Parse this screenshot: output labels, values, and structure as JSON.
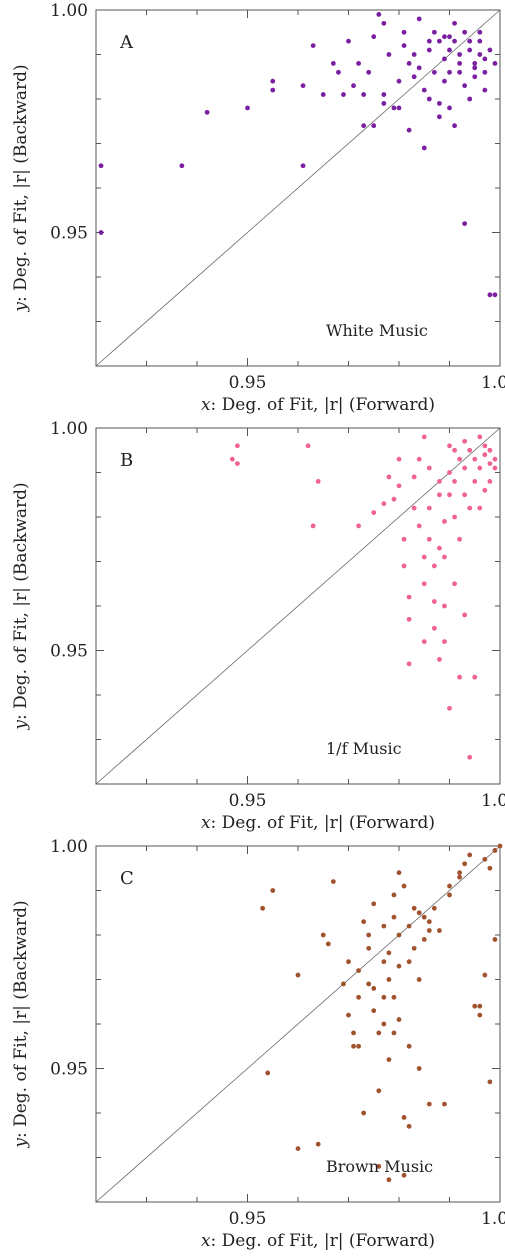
{
  "chart_data": [
    {
      "type": "scatter",
      "panel_label": "A",
      "annotation": "White Music",
      "color": "#7b1fa2",
      "xlabel_var": "x",
      "xlabel": ": Deg. of Fit, |r| (Forward)",
      "ylabel_var": "y",
      "ylabel": ": Deg. of Fit, |r| (Backward)",
      "xlim": [
        0.92,
        1.0
      ],
      "ylim": [
        0.92,
        1.0
      ],
      "x_ticks": [
        0.95,
        1.0
      ],
      "x_tick_labels": [
        "0.95",
        "1.00"
      ],
      "y_ticks": [
        0.95,
        1.0
      ],
      "y_tick_labels": [
        "0.95",
        "1.00"
      ],
      "grid": false,
      "points": [
        [
          0.921,
          0.965
        ],
        [
          0.921,
          0.95
        ],
        [
          0.937,
          0.965
        ],
        [
          0.942,
          0.977
        ],
        [
          0.95,
          0.978
        ],
        [
          0.955,
          0.982
        ],
        [
          0.955,
          0.984
        ],
        [
          0.961,
          0.965
        ],
        [
          0.961,
          0.983
        ],
        [
          0.963,
          0.992
        ],
        [
          0.965,
          0.981
        ],
        [
          0.967,
          0.988
        ],
        [
          0.968,
          0.986
        ],
        [
          0.969,
          0.981
        ],
        [
          0.97,
          0.993
        ],
        [
          0.971,
          0.983
        ],
        [
          0.972,
          0.988
        ],
        [
          0.973,
          0.981
        ],
        [
          0.973,
          0.974
        ],
        [
          0.974,
          0.986
        ],
        [
          0.975,
          0.974
        ],
        [
          0.975,
          0.994
        ],
        [
          0.976,
          0.999
        ],
        [
          0.977,
          0.997
        ],
        [
          0.977,
          0.981
        ],
        [
          0.977,
          0.979
        ],
        [
          0.978,
          0.99
        ],
        [
          0.979,
          0.978
        ],
        [
          0.98,
          0.978
        ],
        [
          0.981,
          0.995
        ],
        [
          0.982,
          0.988
        ],
        [
          0.982,
          0.973
        ],
        [
          0.983,
          0.99
        ],
        [
          0.984,
          0.987
        ],
        [
          0.985,
          0.982
        ],
        [
          0.985,
          0.969
        ],
        [
          0.986,
          0.991
        ],
        [
          0.986,
          0.98
        ],
        [
          0.987,
          0.986
        ],
        [
          0.987,
          0.995
        ],
        [
          0.988,
          0.993
        ],
        [
          0.988,
          0.976
        ],
        [
          0.989,
          0.989
        ],
        [
          0.989,
          0.984
        ],
        [
          0.99,
          0.991
        ],
        [
          0.99,
          0.986
        ],
        [
          0.99,
          0.978
        ],
        [
          0.991,
          0.993
        ],
        [
          0.991,
          0.997
        ],
        [
          0.991,
          0.974
        ],
        [
          0.992,
          0.988
        ],
        [
          0.992,
          0.99
        ],
        [
          0.993,
          0.983
        ],
        [
          0.993,
          0.995
        ],
        [
          0.993,
          0.952
        ],
        [
          0.994,
          0.991
        ],
        [
          0.994,
          0.993
        ],
        [
          0.995,
          0.988
        ],
        [
          0.995,
          0.985
        ],
        [
          0.996,
          0.993
        ],
        [
          0.996,
          0.99
        ],
        [
          0.997,
          0.986
        ],
        [
          0.997,
          0.989
        ],
        [
          0.998,
          0.936
        ],
        [
          0.999,
          0.936
        ],
        [
          0.998,
          0.991
        ],
        [
          0.999,
          0.988
        ],
        [
          0.984,
          0.998
        ],
        [
          0.986,
          0.993
        ],
        [
          0.98,
          0.984
        ],
        [
          0.981,
          0.992
        ],
        [
          0.983,
          0.985
        ],
        [
          0.988,
          0.979
        ],
        [
          0.989,
          0.994
        ],
        [
          0.992,
          0.986
        ],
        [
          0.994,
          0.98
        ],
        [
          0.995,
          0.987
        ],
        [
          0.996,
          0.995
        ],
        [
          0.997,
          0.982
        ],
        [
          0.99,
          0.994
        ]
      ]
    },
    {
      "type": "scatter",
      "panel_label": "B",
      "annotation": "1/f Music",
      "color": "#f06292",
      "xlabel_var": "x",
      "xlabel": ": Deg. of Fit, |r| (Forward)",
      "ylabel_var": "y",
      "ylabel": ": Deg. of Fit, |r| (Backward)",
      "xlim": [
        0.92,
        1.0
      ],
      "ylim": [
        0.92,
        1.0
      ],
      "x_ticks": [
        0.95,
        1.0
      ],
      "x_tick_labels": [
        "0.95",
        "1.00"
      ],
      "y_ticks": [
        0.95,
        1.0
      ],
      "y_tick_labels": [
        "0.95",
        "1.00"
      ],
      "grid": false,
      "points": [
        [
          0.947,
          0.993
        ],
        [
          0.948,
          0.992
        ],
        [
          0.948,
          0.996
        ],
        [
          0.962,
          0.996
        ],
        [
          0.963,
          0.978
        ],
        [
          0.964,
          0.988
        ],
        [
          0.972,
          0.978
        ],
        [
          0.975,
          0.981
        ],
        [
          0.977,
          0.983
        ],
        [
          0.978,
          0.989
        ],
        [
          0.979,
          0.984
        ],
        [
          0.98,
          0.993
        ],
        [
          0.98,
          0.987
        ],
        [
          0.981,
          0.975
        ],
        [
          0.981,
          0.969
        ],
        [
          0.982,
          0.962
        ],
        [
          0.982,
          0.957
        ],
        [
          0.982,
          0.947
        ],
        [
          0.983,
          0.989
        ],
        [
          0.983,
          0.982
        ],
        [
          0.984,
          0.993
        ],
        [
          0.984,
          0.978
        ],
        [
          0.985,
          0.998
        ],
        [
          0.985,
          0.971
        ],
        [
          0.985,
          0.952
        ],
        [
          0.985,
          0.965
        ],
        [
          0.986,
          0.991
        ],
        [
          0.986,
          0.982
        ],
        [
          0.986,
          0.975
        ],
        [
          0.987,
          0.969
        ],
        [
          0.987,
          0.961
        ],
        [
          0.987,
          0.955
        ],
        [
          0.988,
          0.985
        ],
        [
          0.988,
          0.988
        ],
        [
          0.988,
          0.973
        ],
        [
          0.988,
          0.948
        ],
        [
          0.989,
          0.979
        ],
        [
          0.989,
          0.971
        ],
        [
          0.989,
          0.952
        ],
        [
          0.99,
          0.985
        ],
        [
          0.99,
          0.996
        ],
        [
          0.99,
          0.937
        ],
        [
          0.991,
          0.988
        ],
        [
          0.991,
          0.98
        ],
        [
          0.991,
          0.965
        ],
        [
          0.992,
          0.993
        ],
        [
          0.992,
          0.975
        ],
        [
          0.992,
          0.944
        ],
        [
          0.993,
          0.991
        ],
        [
          0.993,
          0.985
        ],
        [
          0.993,
          0.958
        ],
        [
          0.994,
          0.995
        ],
        [
          0.994,
          0.982
        ],
        [
          0.994,
          0.926
        ],
        [
          0.995,
          0.993
        ],
        [
          0.995,
          0.988
        ],
        [
          0.995,
          0.944
        ],
        [
          0.996,
          0.998
        ],
        [
          0.996,
          0.982
        ],
        [
          0.996,
          0.991
        ],
        [
          0.997,
          0.994
        ],
        [
          0.997,
          0.986
        ],
        [
          0.997,
          0.996
        ],
        [
          0.998,
          0.992
        ],
        [
          0.998,
          0.995
        ],
        [
          0.998,
          0.988
        ],
        [
          0.999,
          0.993
        ],
        [
          0.999,
          0.991
        ],
        [
          0.991,
          0.995
        ],
        [
          0.993,
          0.997
        ],
        [
          0.99,
          0.99
        ],
        [
          0.989,
          0.96
        ]
      ]
    },
    {
      "type": "scatter",
      "panel_label": "C",
      "annotation": "Brown Music",
      "color": "#a0522d",
      "xlabel_var": "x",
      "xlabel": ": Deg. of Fit, |r| (Forward)",
      "ylabel_var": "y",
      "ylabel": ": Deg. of Fit, |r| (Backward)",
      "xlim": [
        0.92,
        1.0
      ],
      "ylim": [
        0.92,
        1.0
      ],
      "x_ticks": [
        0.95,
        1.0
      ],
      "x_tick_labels": [
        "0.95",
        "1.00"
      ],
      "y_ticks": [
        0.95,
        1.0
      ],
      "y_tick_labels": [
        "0.95",
        "1.00"
      ],
      "grid": false,
      "points": [
        [
          0.953,
          0.986
        ],
        [
          0.955,
          0.99
        ],
        [
          0.954,
          0.949
        ],
        [
          0.96,
          0.971
        ],
        [
          0.96,
          0.932
        ],
        [
          0.964,
          0.933
        ],
        [
          0.965,
          0.98
        ],
        [
          0.966,
          0.978
        ],
        [
          0.967,
          0.992
        ],
        [
          0.969,
          0.969
        ],
        [
          0.97,
          0.974
        ],
        [
          0.97,
          0.962
        ],
        [
          0.971,
          0.955
        ],
        [
          0.971,
          0.958
        ],
        [
          0.972,
          0.966
        ],
        [
          0.972,
          0.955
        ],
        [
          0.972,
          0.972
        ],
        [
          0.973,
          0.983
        ],
        [
          0.973,
          0.94
        ],
        [
          0.974,
          0.969
        ],
        [
          0.974,
          0.98
        ],
        [
          0.974,
          0.977
        ],
        [
          0.975,
          0.987
        ],
        [
          0.975,
          0.963
        ],
        [
          0.975,
          0.968
        ],
        [
          0.976,
          0.958
        ],
        [
          0.976,
          0.945
        ],
        [
          0.976,
          0.928
        ],
        [
          0.977,
          0.982
        ],
        [
          0.977,
          0.974
        ],
        [
          0.977,
          0.966
        ],
        [
          0.977,
          0.96
        ],
        [
          0.978,
          0.976
        ],
        [
          0.978,
          0.97
        ],
        [
          0.978,
          0.952
        ],
        [
          0.978,
          0.925
        ],
        [
          0.979,
          0.989
        ],
        [
          0.979,
          0.984
        ],
        [
          0.979,
          0.958
        ],
        [
          0.979,
          0.966
        ],
        [
          0.98,
          0.994
        ],
        [
          0.98,
          0.98
        ],
        [
          0.98,
          0.973
        ],
        [
          0.98,
          0.961
        ],
        [
          0.981,
          0.926
        ],
        [
          0.981,
          0.991
        ],
        [
          0.981,
          0.939
        ],
        [
          0.982,
          0.982
        ],
        [
          0.982,
          0.974
        ],
        [
          0.982,
          0.955
        ],
        [
          0.982,
          0.937
        ],
        [
          0.983,
          0.986
        ],
        [
          0.983,
          0.977
        ],
        [
          0.984,
          0.97
        ],
        [
          0.984,
          0.95
        ],
        [
          0.985,
          0.984
        ],
        [
          0.985,
          0.979
        ],
        [
          0.986,
          0.983
        ],
        [
          0.986,
          0.942
        ],
        [
          0.987,
          0.986
        ],
        [
          0.988,
          0.981
        ],
        [
          0.989,
          0.942
        ],
        [
          0.99,
          0.991
        ],
        [
          0.99,
          0.989
        ],
        [
          0.992,
          0.993
        ],
        [
          0.993,
          0.996
        ],
        [
          0.994,
          0.998
        ],
        [
          0.995,
          0.964
        ],
        [
          0.996,
          0.964
        ],
        [
          0.996,
          0.962
        ],
        [
          0.997,
          0.997
        ],
        [
          0.997,
          0.971
        ],
        [
          0.998,
          0.947
        ],
        [
          0.998,
          0.995
        ],
        [
          0.999,
          0.979
        ],
        [
          0.999,
          0.999
        ],
        [
          1.0,
          1.0
        ],
        [
          0.992,
          0.994
        ],
        [
          0.986,
          0.981
        ],
        [
          0.984,
          0.985
        ]
      ]
    }
  ]
}
